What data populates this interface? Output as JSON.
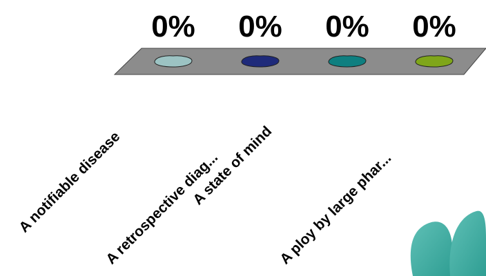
{
  "chart_data": {
    "type": "bar",
    "categories": [
      "A notifiable disease",
      "A retrospective diag...",
      "A state of mind",
      "A ploy by large phar..."
    ],
    "values": [
      0,
      0,
      0,
      0
    ],
    "value_labels": [
      "0%",
      "0%",
      "0%",
      "0%"
    ],
    "colors": [
      "#9cc3c3",
      "#1e2a7a",
      "#0e7f80",
      "#7fa61a"
    ],
    "base_color": "#8c8c8c"
  }
}
